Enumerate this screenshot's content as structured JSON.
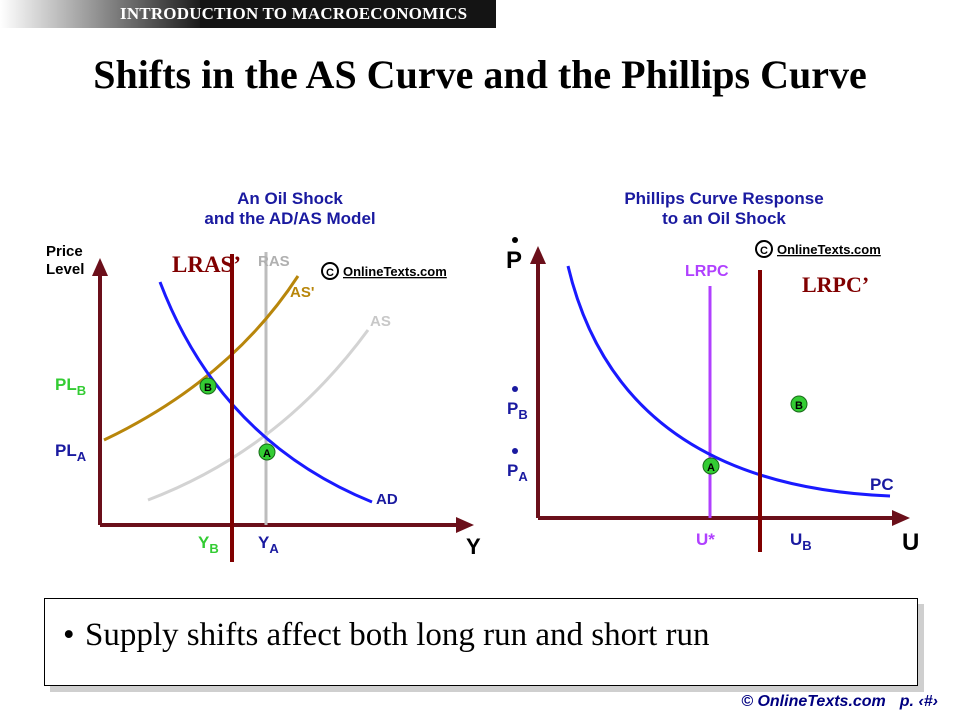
{
  "header": {
    "banner_text": "INTRODUCTION TO MACROECONOMICS"
  },
  "slide": {
    "title": "Shifts in the AS Curve and the Phillips Curve"
  },
  "left_chart": {
    "title_line1": "An Oil Shock",
    "title_line2": "and the AD/AS Model",
    "watermark": "OnlineTexts.com",
    "y_axis_line1": "Price",
    "y_axis_line2": "Level",
    "x_axis": "Y",
    "label_pl_b": "PL",
    "label_pl_b_sub": "B",
    "label_pl_a": "PL",
    "label_pl_a_sub": "A",
    "label_y_b": "Y",
    "label_y_b_sub": "B",
    "label_y_a": "Y",
    "label_y_a_sub": "A",
    "label_ras": "RAS",
    "label_as_prime": "AS'",
    "label_as": "AS",
    "label_ad": "AD",
    "point_a": "A",
    "point_b": "B",
    "overlay_lras_prime": "LRAS’"
  },
  "right_chart": {
    "title_line1": "Phillips Curve Response",
    "title_line2": "to an Oil Shock",
    "watermark": "OnlineTexts.com",
    "y_axis": "P",
    "x_axis": "U",
    "label_p_b": "P",
    "label_p_b_sub": "B",
    "label_p_a": "P",
    "label_p_a_sub": "A",
    "label_lrpc": "LRPC",
    "label_pc": "PC",
    "label_u_star": "U*",
    "label_u_b": "U",
    "label_u_b_sub": "B",
    "point_a": "A",
    "point_b": "B",
    "overlay_lrpc_prime": "LRPC’"
  },
  "note": {
    "bullet": "•",
    "text": "Supply shifts affect both long run and short run"
  },
  "footer": {
    "copyright": "© OnlineTexts.com",
    "page": "p. ‹#›"
  },
  "colors": {
    "accent_blue": "#1a1aff",
    "green": "#33cc33",
    "brown": "#b8860b",
    "maroon": "#800000",
    "purple": "#b040ff",
    "axis_maroon": "#6b0f1a",
    "title_blue": "#1a1aa0"
  }
}
